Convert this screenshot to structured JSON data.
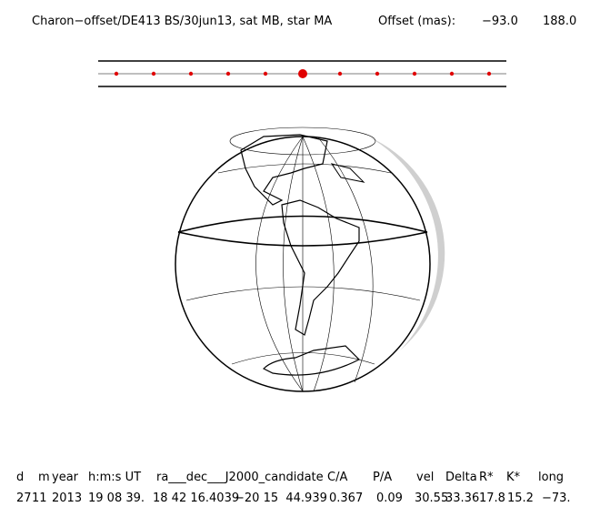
{
  "header": {
    "title": "Charon−offset/DE413 BS/30jun13, sat MB, star MA",
    "offset_label": "Offset (mas):",
    "offset_values": [
      "−93.0",
      "188.0"
    ]
  },
  "table": {
    "columns": [
      "d",
      "m",
      "year",
      "h:m:s UT",
      "ra___dec___J2000_candidate",
      "C/A",
      "P/A",
      "vel",
      "Delta",
      "R*",
      "K*",
      "long"
    ],
    "row": [
      "27",
      "11",
      "2013",
      "19 08 39.",
      "18 42 16.4039",
      "−20 15  44.939",
      "0.367",
      "0.09",
      "30.55",
      "33.36",
      "17.8",
      "15.2",
      "−73."
    ]
  }
}
